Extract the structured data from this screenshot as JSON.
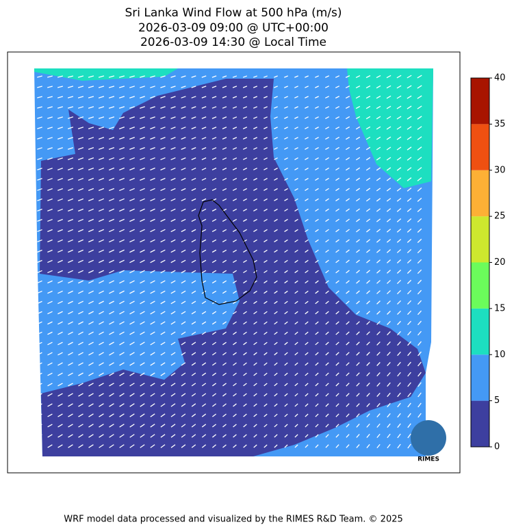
{
  "title": [
    "Sri Lanka Wind Flow at 500 hPa (m/s)",
    "2026-03-09 09:00 @ UTC+00:00",
    "2026-03-09 14:30 @ Local Time"
  ],
  "colorbar": {
    "lim": [
      0,
      40
    ],
    "ticks": [
      0,
      5,
      10,
      15,
      20,
      25,
      30,
      35,
      40
    ],
    "colors": [
      "#3d3f9f",
      "#4499f5",
      "#1ddfc0",
      "#6bfc5b",
      "#cde82e",
      "#fdb035",
      "#ef5011",
      "#a81400"
    ]
  },
  "logo": "RIMES",
  "footer": "WRF model data processed and visualized by the RIMES R&D Team. © 2025"
}
